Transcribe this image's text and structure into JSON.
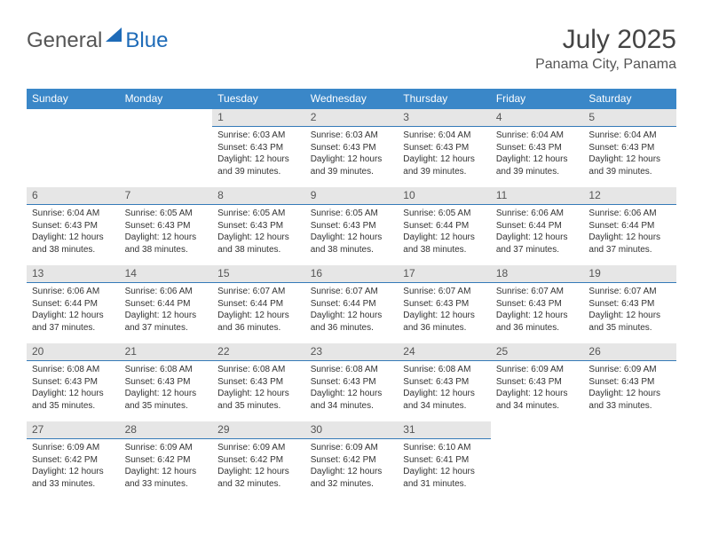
{
  "logo": {
    "text_left": "General",
    "text_right": "Blue"
  },
  "title": {
    "month": "July 2025",
    "location": "Panama City, Panama"
  },
  "colors": {
    "header_bg": "#3a87c8",
    "header_fg": "#ffffff",
    "daynum_bg": "#e6e6e6",
    "daynum_border": "#357ab8",
    "text": "#333333",
    "logo_blue": "#1e6bb8"
  },
  "weekdays": [
    "Sunday",
    "Monday",
    "Tuesday",
    "Wednesday",
    "Thursday",
    "Friday",
    "Saturday"
  ],
  "first_weekday_index": 2,
  "days": [
    {
      "n": 1,
      "sunrise": "6:03 AM",
      "sunset": "6:43 PM",
      "daylight": "12 hours and 39 minutes."
    },
    {
      "n": 2,
      "sunrise": "6:03 AM",
      "sunset": "6:43 PM",
      "daylight": "12 hours and 39 minutes."
    },
    {
      "n": 3,
      "sunrise": "6:04 AM",
      "sunset": "6:43 PM",
      "daylight": "12 hours and 39 minutes."
    },
    {
      "n": 4,
      "sunrise": "6:04 AM",
      "sunset": "6:43 PM",
      "daylight": "12 hours and 39 minutes."
    },
    {
      "n": 5,
      "sunrise": "6:04 AM",
      "sunset": "6:43 PM",
      "daylight": "12 hours and 39 minutes."
    },
    {
      "n": 6,
      "sunrise": "6:04 AM",
      "sunset": "6:43 PM",
      "daylight": "12 hours and 38 minutes."
    },
    {
      "n": 7,
      "sunrise": "6:05 AM",
      "sunset": "6:43 PM",
      "daylight": "12 hours and 38 minutes."
    },
    {
      "n": 8,
      "sunrise": "6:05 AM",
      "sunset": "6:43 PM",
      "daylight": "12 hours and 38 minutes."
    },
    {
      "n": 9,
      "sunrise": "6:05 AM",
      "sunset": "6:43 PM",
      "daylight": "12 hours and 38 minutes."
    },
    {
      "n": 10,
      "sunrise": "6:05 AM",
      "sunset": "6:44 PM",
      "daylight": "12 hours and 38 minutes."
    },
    {
      "n": 11,
      "sunrise": "6:06 AM",
      "sunset": "6:44 PM",
      "daylight": "12 hours and 37 minutes."
    },
    {
      "n": 12,
      "sunrise": "6:06 AM",
      "sunset": "6:44 PM",
      "daylight": "12 hours and 37 minutes."
    },
    {
      "n": 13,
      "sunrise": "6:06 AM",
      "sunset": "6:44 PM",
      "daylight": "12 hours and 37 minutes."
    },
    {
      "n": 14,
      "sunrise": "6:06 AM",
      "sunset": "6:44 PM",
      "daylight": "12 hours and 37 minutes."
    },
    {
      "n": 15,
      "sunrise": "6:07 AM",
      "sunset": "6:44 PM",
      "daylight": "12 hours and 36 minutes."
    },
    {
      "n": 16,
      "sunrise": "6:07 AM",
      "sunset": "6:44 PM",
      "daylight": "12 hours and 36 minutes."
    },
    {
      "n": 17,
      "sunrise": "6:07 AM",
      "sunset": "6:43 PM",
      "daylight": "12 hours and 36 minutes."
    },
    {
      "n": 18,
      "sunrise": "6:07 AM",
      "sunset": "6:43 PM",
      "daylight": "12 hours and 36 minutes."
    },
    {
      "n": 19,
      "sunrise": "6:07 AM",
      "sunset": "6:43 PM",
      "daylight": "12 hours and 35 minutes."
    },
    {
      "n": 20,
      "sunrise": "6:08 AM",
      "sunset": "6:43 PM",
      "daylight": "12 hours and 35 minutes."
    },
    {
      "n": 21,
      "sunrise": "6:08 AM",
      "sunset": "6:43 PM",
      "daylight": "12 hours and 35 minutes."
    },
    {
      "n": 22,
      "sunrise": "6:08 AM",
      "sunset": "6:43 PM",
      "daylight": "12 hours and 35 minutes."
    },
    {
      "n": 23,
      "sunrise": "6:08 AM",
      "sunset": "6:43 PM",
      "daylight": "12 hours and 34 minutes."
    },
    {
      "n": 24,
      "sunrise": "6:08 AM",
      "sunset": "6:43 PM",
      "daylight": "12 hours and 34 minutes."
    },
    {
      "n": 25,
      "sunrise": "6:09 AM",
      "sunset": "6:43 PM",
      "daylight": "12 hours and 34 minutes."
    },
    {
      "n": 26,
      "sunrise": "6:09 AM",
      "sunset": "6:43 PM",
      "daylight": "12 hours and 33 minutes."
    },
    {
      "n": 27,
      "sunrise": "6:09 AM",
      "sunset": "6:42 PM",
      "daylight": "12 hours and 33 minutes."
    },
    {
      "n": 28,
      "sunrise": "6:09 AM",
      "sunset": "6:42 PM",
      "daylight": "12 hours and 33 minutes."
    },
    {
      "n": 29,
      "sunrise": "6:09 AM",
      "sunset": "6:42 PM",
      "daylight": "12 hours and 32 minutes."
    },
    {
      "n": 30,
      "sunrise": "6:09 AM",
      "sunset": "6:42 PM",
      "daylight": "12 hours and 32 minutes."
    },
    {
      "n": 31,
      "sunrise": "6:10 AM",
      "sunset": "6:41 PM",
      "daylight": "12 hours and 31 minutes."
    }
  ],
  "labels": {
    "sunrise": "Sunrise:",
    "sunset": "Sunset:",
    "daylight": "Daylight:"
  }
}
